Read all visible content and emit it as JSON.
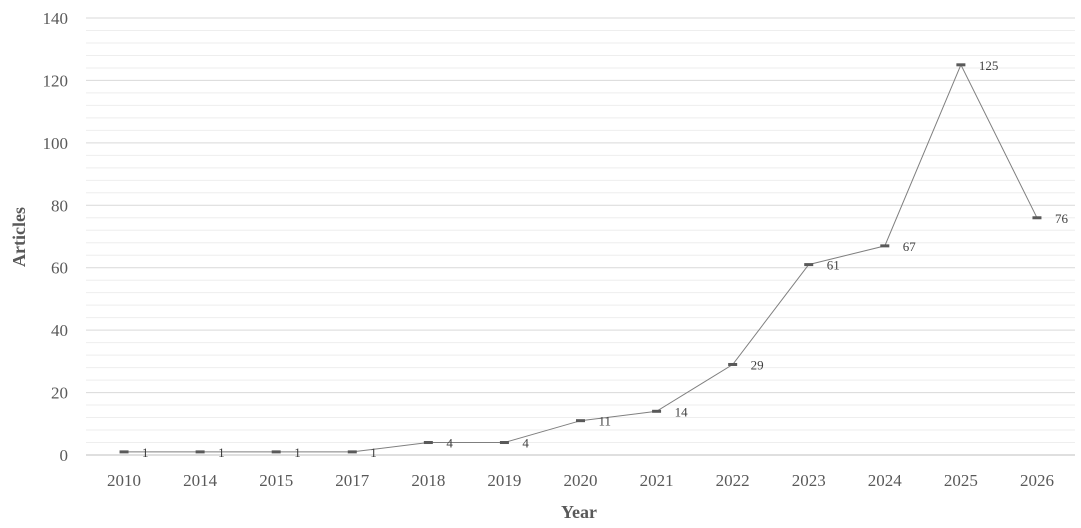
{
  "chart_data": {
    "type": "line",
    "x": [
      "2010",
      "2014",
      "2015",
      "2017",
      "2018",
      "2019",
      "2020",
      "2021",
      "2022",
      "2023",
      "2024",
      "2025",
      "2026"
    ],
    "series": [
      {
        "values": [
          1,
          1,
          1,
          1,
          4,
          4,
          11,
          14,
          29,
          61,
          67,
          125,
          76
        ]
      }
    ],
    "data_labels": [
      "1",
      "1",
      "1",
      "1",
      "4",
      "4",
      "11",
      "14",
      "29",
      "61",
      "67",
      "125",
      "76"
    ],
    "xlabel": "Year",
    "ylabel": "Articles",
    "ylim": [
      0,
      140
    ],
    "y_ticks": [
      0,
      20,
      40,
      60,
      80,
      100,
      120,
      140
    ],
    "y_minor_step": 4,
    "grid": true,
    "legend": "none",
    "colors": {
      "line": "#7f7f7f",
      "marker": "#595959",
      "grid_major": "#d9d9d9",
      "grid_minor": "#eeeeee",
      "text": "#595959"
    }
  }
}
